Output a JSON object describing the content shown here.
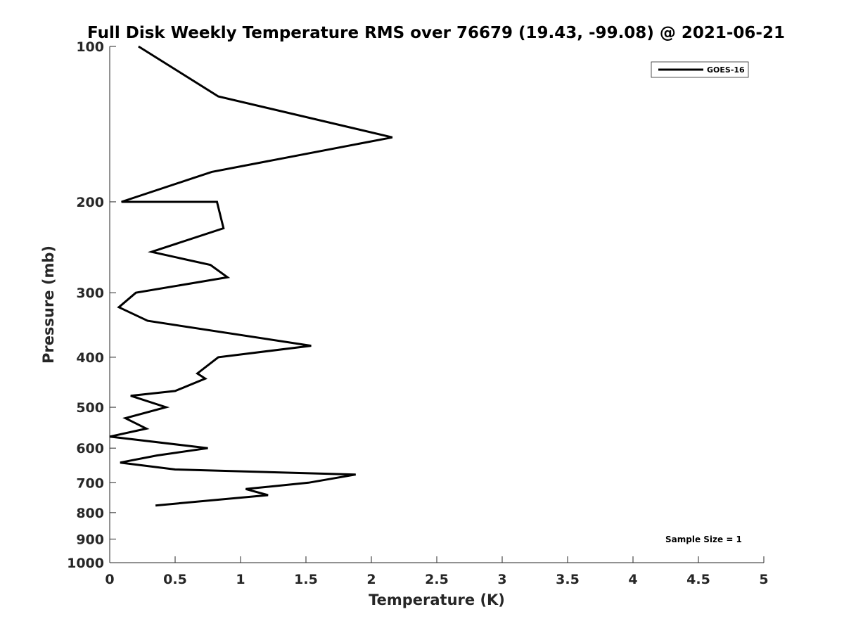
{
  "chart_data": {
    "type": "line",
    "title": "Full Disk Weekly Temperature RMS over 76679 (19.43, -99.08) @ 2021-06-21",
    "xlabel": "Temperature (K)",
    "ylabel": "Pressure (mb)",
    "xlim": [
      0,
      5
    ],
    "ylim": [
      100,
      1000
    ],
    "y_scale": "log",
    "y_reversed": true,
    "grid": false,
    "legend_position": "top-right",
    "x_ticks": [
      "0",
      "0.5",
      "1",
      "1.5",
      "2",
      "2.5",
      "3",
      "3.5",
      "4",
      "4.5",
      "5"
    ],
    "y_ticks": [
      "100",
      "200",
      "300",
      "400",
      "500",
      "600",
      "700",
      "800",
      "900",
      "1000"
    ],
    "series": [
      {
        "name": "GOES-16",
        "color": "#000000",
        "points": [
          {
            "x": 0.22,
            "y": 100
          },
          {
            "x": 0.83,
            "y": 125
          },
          {
            "x": 2.16,
            "y": 150
          },
          {
            "x": 0.78,
            "y": 175
          },
          {
            "x": 0.09,
            "y": 200
          },
          {
            "x": 0.82,
            "y": 200
          },
          {
            "x": 0.87,
            "y": 225
          },
          {
            "x": 0.32,
            "y": 250
          },
          {
            "x": 0.77,
            "y": 265
          },
          {
            "x": 0.9,
            "y": 280
          },
          {
            "x": 0.2,
            "y": 300
          },
          {
            "x": 0.07,
            "y": 320
          },
          {
            "x": 0.29,
            "y": 340
          },
          {
            "x": 1.54,
            "y": 380
          },
          {
            "x": 0.83,
            "y": 400
          },
          {
            "x": 0.67,
            "y": 430
          },
          {
            "x": 0.73,
            "y": 440
          },
          {
            "x": 0.5,
            "y": 465
          },
          {
            "x": 0.16,
            "y": 475
          },
          {
            "x": 0.43,
            "y": 500
          },
          {
            "x": 0.12,
            "y": 525
          },
          {
            "x": 0.28,
            "y": 550
          },
          {
            "x": 0.0,
            "y": 570
          },
          {
            "x": 0.75,
            "y": 600
          },
          {
            "x": 0.36,
            "y": 620
          },
          {
            "x": 0.08,
            "y": 640
          },
          {
            "x": 0.5,
            "y": 660
          },
          {
            "x": 1.88,
            "y": 675
          },
          {
            "x": 1.52,
            "y": 700
          },
          {
            "x": 1.04,
            "y": 720
          },
          {
            "x": 1.21,
            "y": 740
          },
          {
            "x": 0.35,
            "y": 775
          }
        ]
      }
    ],
    "annotation": "Sample Size = 1"
  }
}
